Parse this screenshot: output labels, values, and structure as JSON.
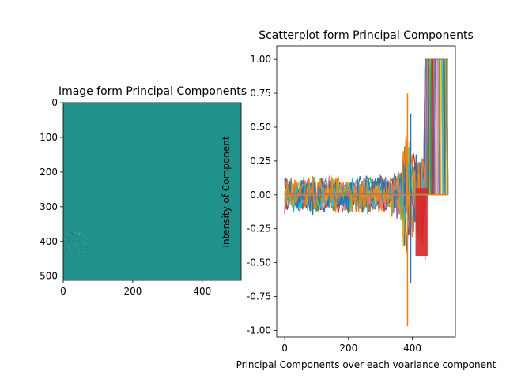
{
  "chart_data": [
    {
      "type": "heatmap",
      "title": "Image form Principal Components",
      "xlim": [
        0,
        512
      ],
      "ylim": [
        512,
        0
      ],
      "y_inverted": true,
      "xticks": [
        0,
        200,
        400
      ],
      "yticks": [
        0,
        100,
        200,
        300,
        400,
        500
      ],
      "dominant_color": "#21918c",
      "colormap": "viridis",
      "grid": false
    },
    {
      "type": "line",
      "title": "Scatterplot form Principal Components",
      "xlabel": "Principal Components over each voariance component",
      "ylabel": "Intensity of Component",
      "xlim": [
        -25,
        535
      ],
      "ylim": [
        -1.05,
        1.1
      ],
      "xticks": [
        0,
        200,
        400
      ],
      "yticks": [
        -1.0,
        -0.75,
        -0.5,
        -0.25,
        0.0,
        0.25,
        0.5,
        0.75,
        1.0
      ],
      "series_count": 512,
      "description_values": {
        "noise_band": [
          -0.2,
          0.25
        ],
        "max": 1.0,
        "min": -0.97,
        "spike_x": 385
      },
      "grid": false,
      "colors": [
        "#1f77b4",
        "#ff7f0e",
        "#2ca02c",
        "#d62728",
        "#9467bd",
        "#8c564b",
        "#e377c2",
        "#7f7f7f",
        "#bcbd22",
        "#17becf"
      ]
    }
  ]
}
